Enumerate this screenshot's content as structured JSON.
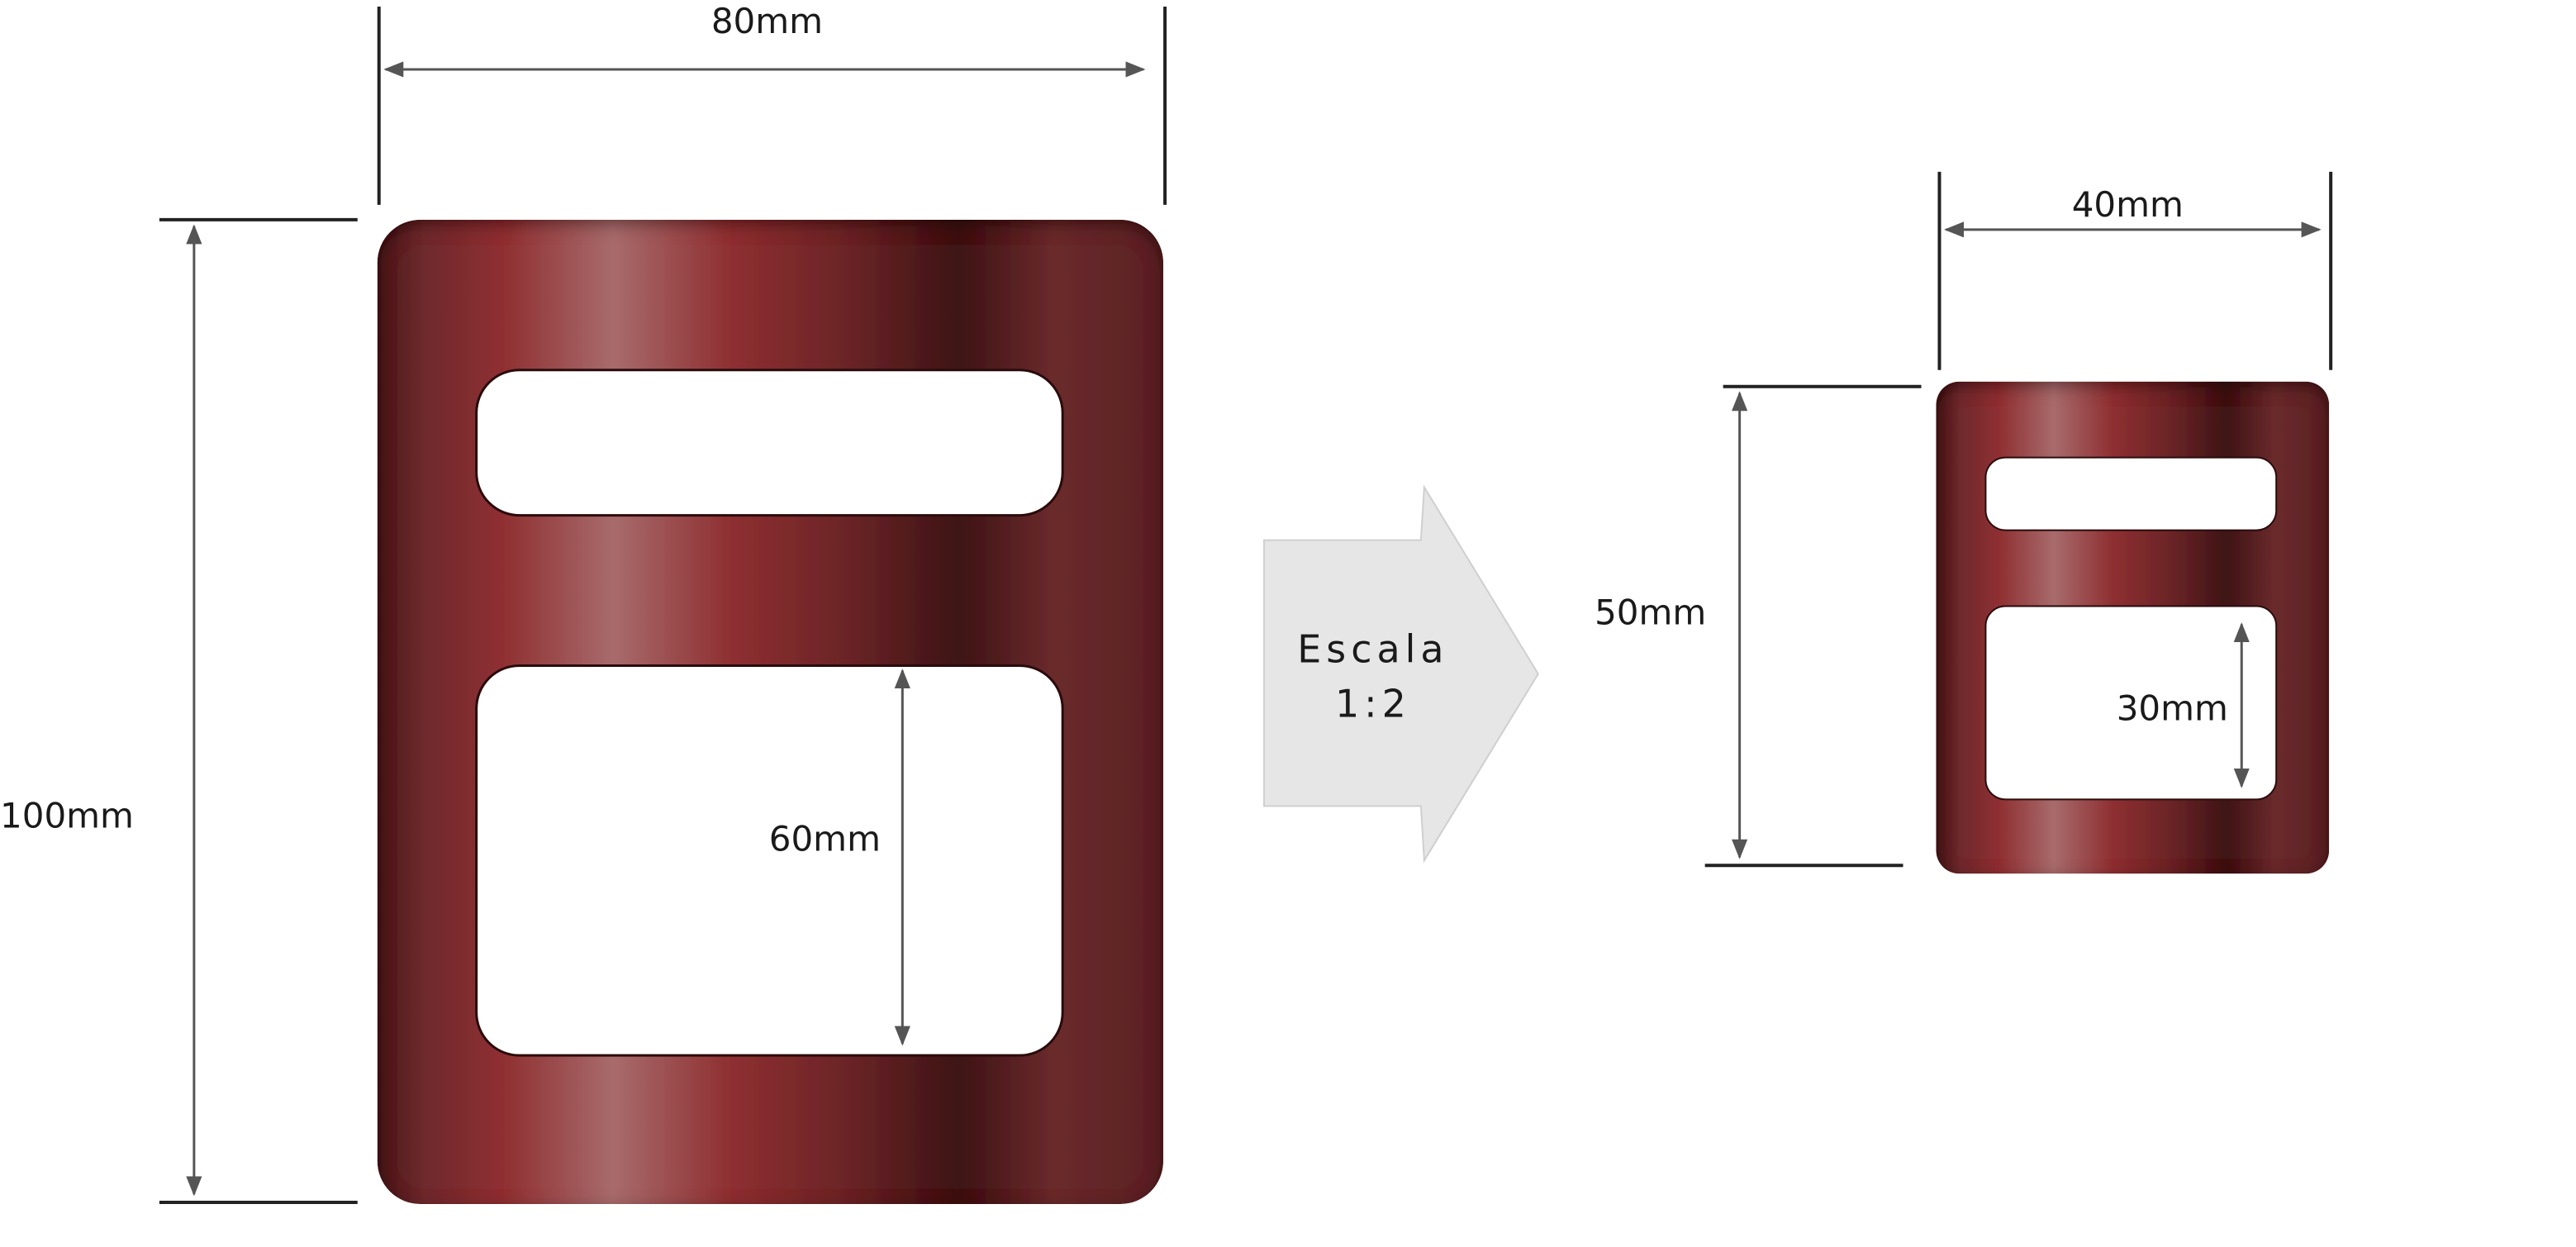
{
  "colors": {
    "buckle_base": "#6e2a2d",
    "buckle_dark": "#3a1214",
    "buckle_mid": "#8f2f31",
    "buckle_highlight": "#a86b6c",
    "dimension_line": "#555555",
    "scale_arrow_fill": "#e6e6e6"
  },
  "large_buckle": {
    "width_label": "80mm",
    "height_label": "100mm",
    "slot_height_label": "60mm"
  },
  "scale_arrow": {
    "line1": "Escala",
    "line2": "1:2"
  },
  "small_buckle": {
    "width_label": "40mm",
    "height_label": "50mm",
    "slot_height_label": "30mm"
  }
}
